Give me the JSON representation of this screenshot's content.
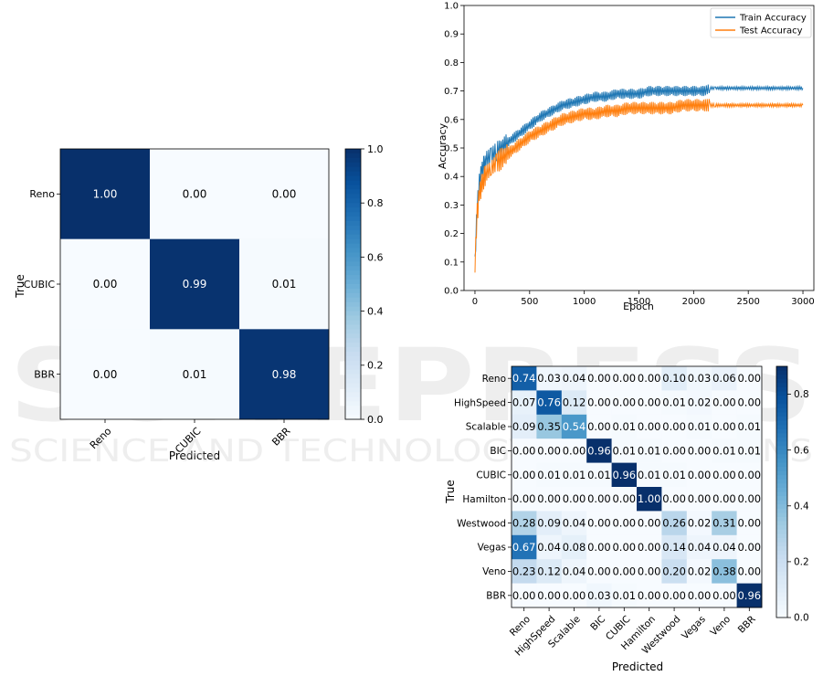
{
  "watermark": {
    "line1": "SCITEPRESS",
    "line2": "SCIENCE AND TECHNOLOGY PUBLICATIONS"
  },
  "colors": {
    "low": "#f7fbff",
    "high": "#08306b",
    "train": "#1f77b4",
    "test": "#ff7f0e"
  },
  "chart_data": [
    {
      "type": "heatmap",
      "xlabel": "Predicted",
      "ylabel": "True",
      "categories": [
        "Reno",
        "CUBIC",
        "BBR"
      ],
      "values": [
        [
          1.0,
          0.0,
          0.0
        ],
        [
          0.0,
          0.99,
          0.01
        ],
        [
          0.0,
          0.01,
          0.98
        ]
      ],
      "colorbar": {
        "range": [
          0.0,
          1.0
        ],
        "ticks": [
          "0.0",
          "0.2",
          "0.4",
          "0.6",
          "0.8",
          "1.0"
        ]
      }
    },
    {
      "type": "line",
      "xlabel": "Epoch",
      "ylabel": "Accuracy",
      "xlim": [
        -100,
        3100
      ],
      "ylim": [
        0.0,
        1.0
      ],
      "xticks": [
        "0",
        "500",
        "1000",
        "1500",
        "2000",
        "2500",
        "3000"
      ],
      "yticks": [
        "0.0",
        "0.1",
        "0.2",
        "0.3",
        "0.4",
        "0.5",
        "0.6",
        "0.7",
        "0.8",
        "0.9",
        "1.0"
      ],
      "legend_position": "top-right",
      "series": [
        {
          "name": "Train Accuracy",
          "x": [
            0,
            20,
            40,
            60,
            80,
            100,
            150,
            200,
            300,
            400,
            500,
            600,
            700,
            800,
            900,
            1000,
            1100,
            1200,
            1300,
            1400,
            1500,
            1600,
            1700,
            1800,
            1900,
            2000,
            2100,
            2150,
            2200,
            2400,
            2600,
            2800,
            3000
          ],
          "y": [
            0.1,
            0.3,
            0.38,
            0.42,
            0.44,
            0.46,
            0.47,
            0.49,
            0.52,
            0.55,
            0.58,
            0.61,
            0.63,
            0.65,
            0.66,
            0.67,
            0.68,
            0.68,
            0.69,
            0.69,
            0.69,
            0.7,
            0.7,
            0.7,
            0.7,
            0.7,
            0.7,
            0.71,
            0.71,
            0.71,
            0.71,
            0.71,
            0.71
          ]
        },
        {
          "name": "Test Accuracy",
          "x": [
            0,
            20,
            40,
            60,
            80,
            100,
            150,
            200,
            300,
            400,
            500,
            600,
            700,
            800,
            900,
            1000,
            1100,
            1200,
            1300,
            1400,
            1500,
            1600,
            1700,
            1800,
            1900,
            2000,
            2100,
            2150,
            2200,
            2400,
            2600,
            2800,
            3000
          ],
          "y": [
            0.1,
            0.27,
            0.34,
            0.37,
            0.39,
            0.41,
            0.43,
            0.45,
            0.48,
            0.51,
            0.54,
            0.56,
            0.58,
            0.6,
            0.61,
            0.62,
            0.62,
            0.63,
            0.63,
            0.64,
            0.64,
            0.64,
            0.64,
            0.64,
            0.65,
            0.65,
            0.65,
            0.65,
            0.65,
            0.65,
            0.65,
            0.65,
            0.65
          ]
        }
      ]
    },
    {
      "type": "heatmap",
      "xlabel": "Predicted",
      "ylabel": "True",
      "categories": [
        "Reno",
        "HighSpeed",
        "Scalable",
        "BIC",
        "CUBIC",
        "Hamilton",
        "Westwood",
        "Vegas",
        "Veno",
        "BBR"
      ],
      "values": [
        [
          0.74,
          0.03,
          0.04,
          0.0,
          0.0,
          0.0,
          0.1,
          0.03,
          0.06,
          0.0
        ],
        [
          0.07,
          0.76,
          0.12,
          0.0,
          0.0,
          0.0,
          0.01,
          0.02,
          0.0,
          0.0
        ],
        [
          0.09,
          0.35,
          0.54,
          0.0,
          0.01,
          0.0,
          0.0,
          0.01,
          0.0,
          0.01
        ],
        [
          0.0,
          0.0,
          0.0,
          0.96,
          0.01,
          0.01,
          0.0,
          0.0,
          0.01,
          0.01
        ],
        [
          0.0,
          0.01,
          0.01,
          0.01,
          0.96,
          0.01,
          0.01,
          0.0,
          0.0,
          0.0
        ],
        [
          0.0,
          0.0,
          0.0,
          0.0,
          0.0,
          1.0,
          0.0,
          0.0,
          0.0,
          0.0
        ],
        [
          0.28,
          0.09,
          0.04,
          0.0,
          0.0,
          0.0,
          0.26,
          0.02,
          0.31,
          0.0
        ],
        [
          0.67,
          0.04,
          0.08,
          0.0,
          0.0,
          0.0,
          0.14,
          0.04,
          0.04,
          0.0
        ],
        [
          0.23,
          0.12,
          0.04,
          0.0,
          0.0,
          0.0,
          0.2,
          0.02,
          0.38,
          0.0
        ],
        [
          0.0,
          0.0,
          0.0,
          0.03,
          0.01,
          0.0,
          0.0,
          0.0,
          0.0,
          0.96
        ]
      ],
      "colorbar": {
        "range": [
          0.0,
          0.9
        ],
        "ticks": [
          "0.0",
          "0.2",
          "0.4",
          "0.6",
          "0.8"
        ]
      }
    }
  ]
}
